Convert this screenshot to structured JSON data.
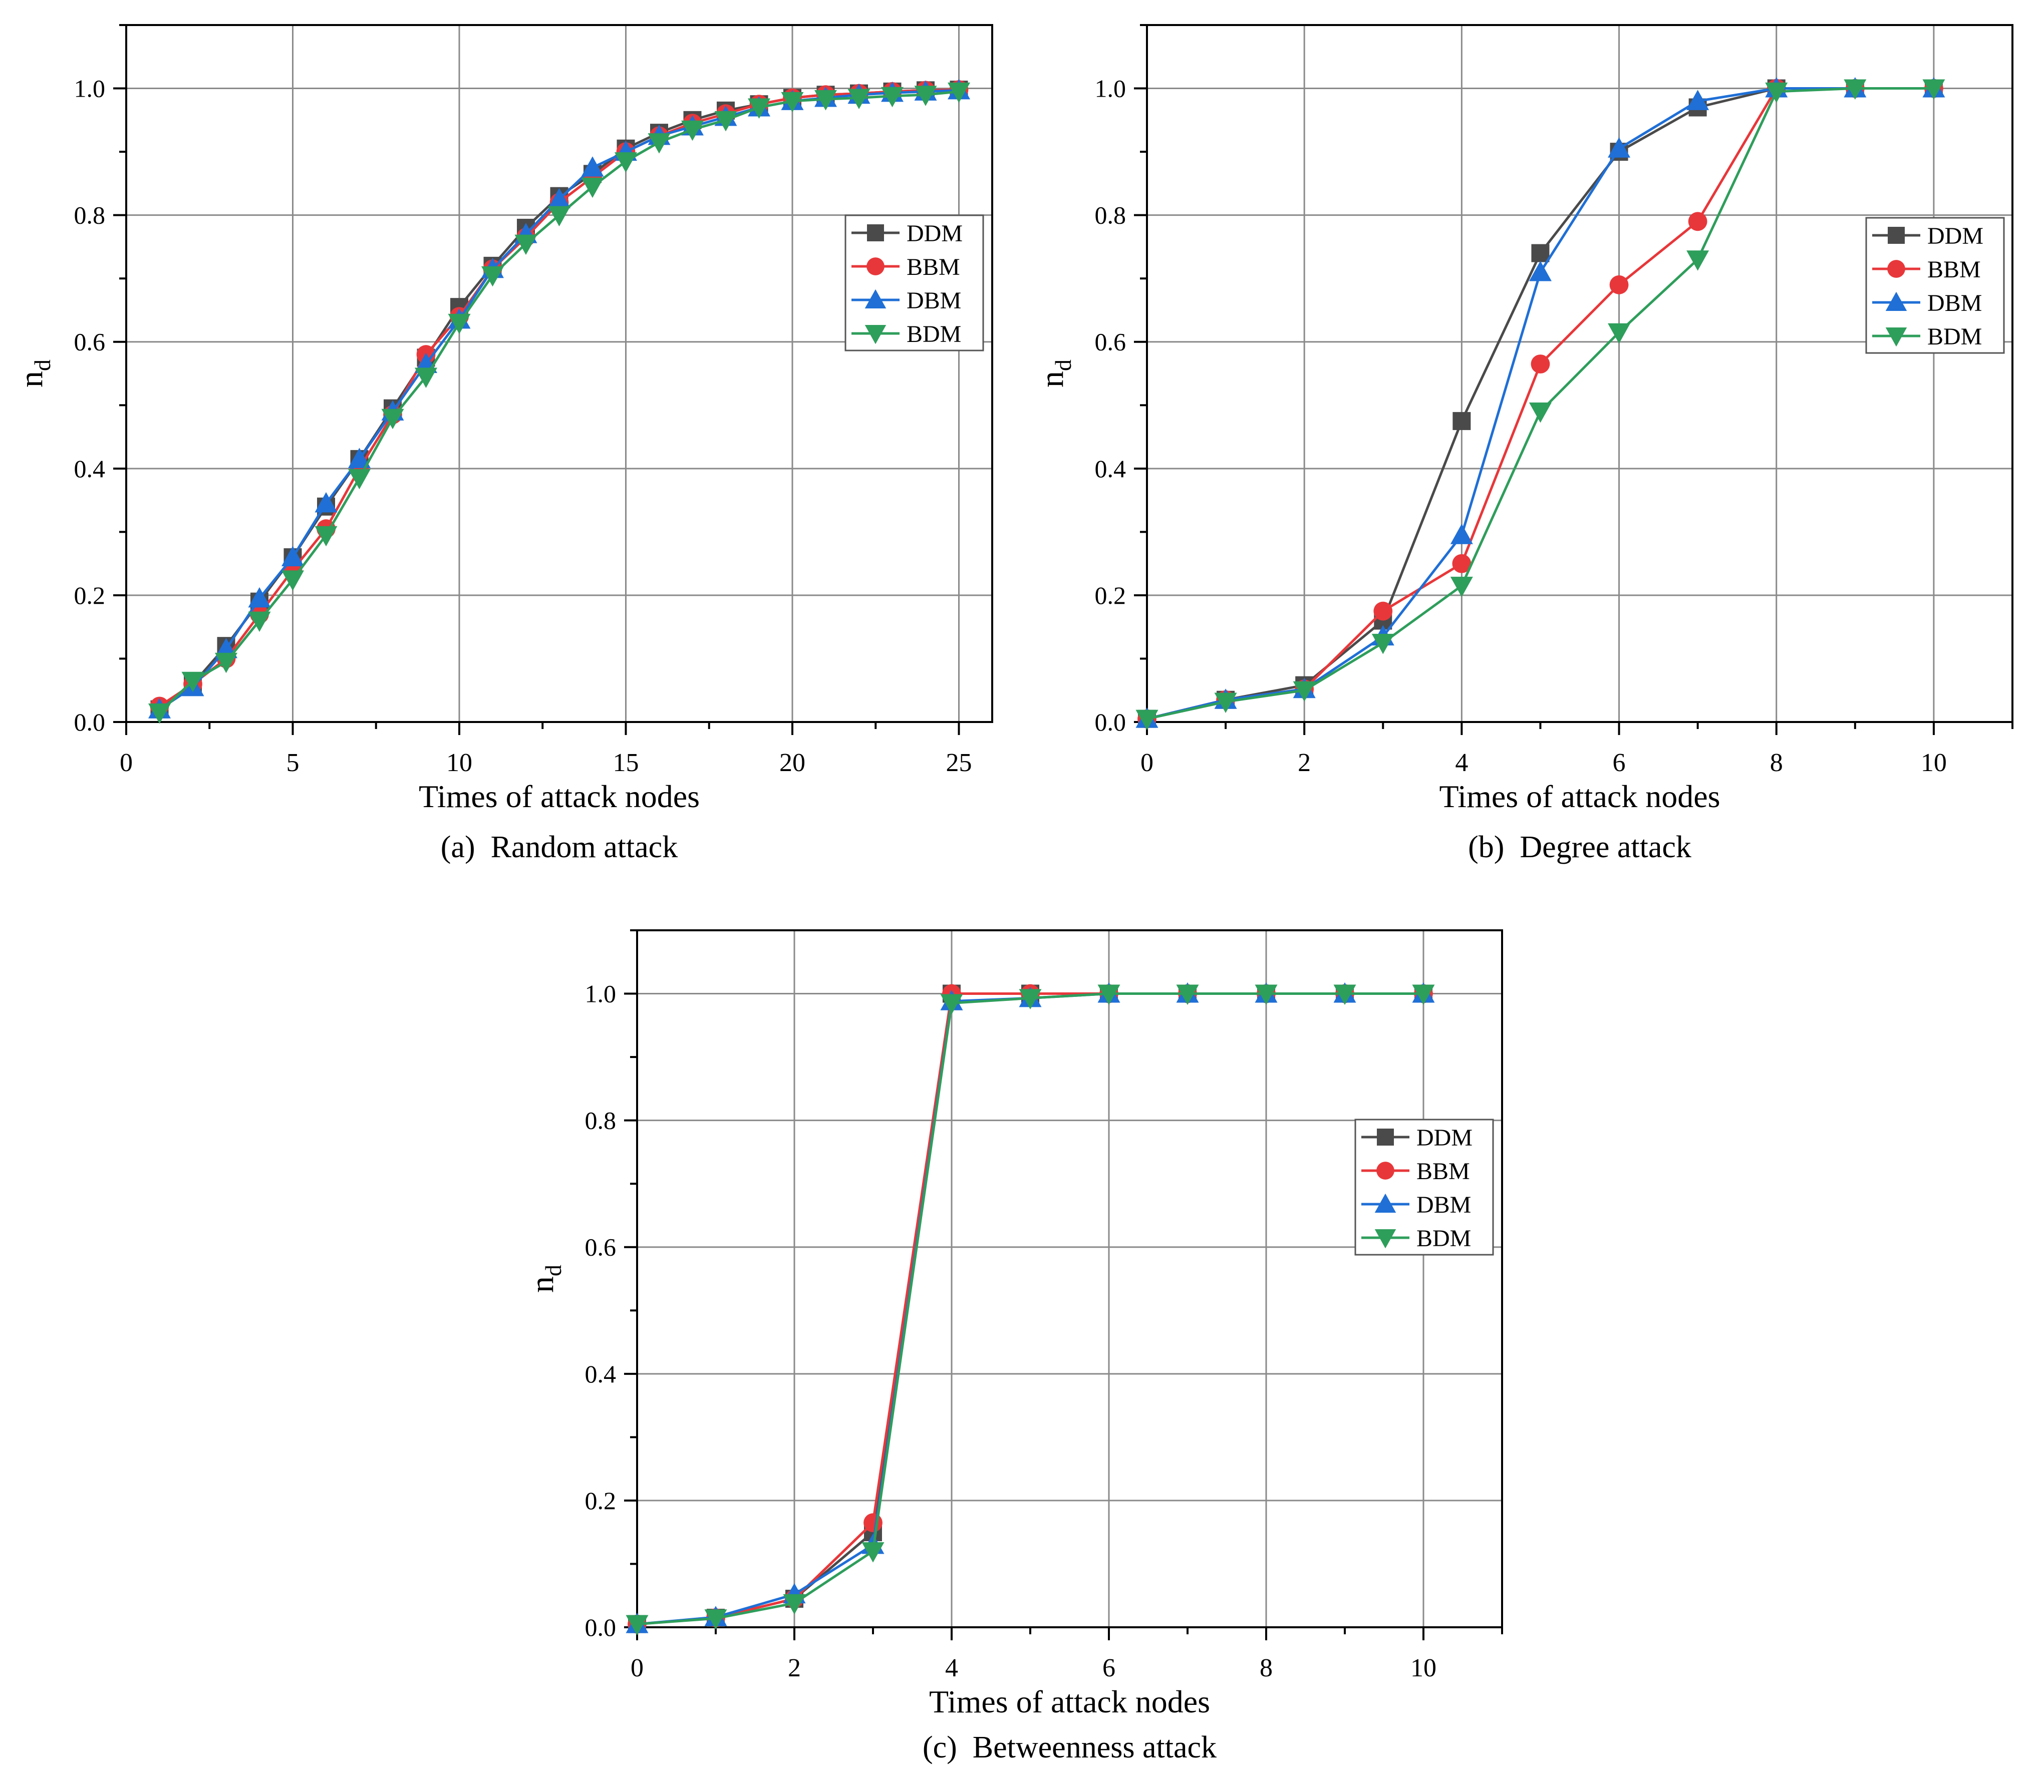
{
  "series_colors": {
    "DDM": "#4a4a4a",
    "BBM": "#e8373a",
    "DBM": "#1f6fd6",
    "BDM": "#2e9e5b"
  },
  "series_markers": {
    "DDM": "square",
    "BBM": "circle",
    "DBM": "triangle-up",
    "BDM": "triangle-down"
  },
  "chart_data": [
    {
      "type": "line",
      "caption": "(a)  Random attack",
      "xlabel": "Times of attack nodes",
      "ylabel": "n",
      "ylabel_sub": "d",
      "xlim": [
        0,
        26
      ],
      "ylim": [
        0,
        1.1
      ],
      "xticks": [
        0,
        5,
        10,
        15,
        20,
        25
      ],
      "xtick_labels": [
        "0",
        "5",
        "10",
        "15",
        "20",
        "25"
      ],
      "yticks": [
        0,
        0.2,
        0.4,
        0.6,
        0.8,
        1.0
      ],
      "ytick_labels": [
        "0.0",
        "0.2",
        "0.4",
        "0.6",
        "0.8",
        "1.0"
      ],
      "grid": true,
      "legend_position": "right",
      "x": [
        1,
        2,
        3,
        4,
        5,
        6,
        7,
        8,
        9,
        10,
        11,
        12,
        13,
        14,
        15,
        16,
        17,
        18,
        19,
        20,
        21,
        22,
        23,
        24,
        25
      ],
      "series": [
        {
          "name": "DDM",
          "values": [
            0.02,
            0.06,
            0.12,
            0.19,
            0.26,
            0.34,
            0.415,
            0.495,
            0.575,
            0.655,
            0.72,
            0.78,
            0.83,
            0.865,
            0.905,
            0.93,
            0.95,
            0.965,
            0.975,
            0.985,
            0.99,
            0.992,
            0.995,
            0.997,
            0.998
          ]
        },
        {
          "name": "BBM",
          "values": [
            0.025,
            0.06,
            0.1,
            0.17,
            0.24,
            0.305,
            0.4,
            0.485,
            0.58,
            0.64,
            0.715,
            0.765,
            0.82,
            0.86,
            0.9,
            0.925,
            0.945,
            0.96,
            0.975,
            0.985,
            0.99,
            0.992,
            0.995,
            0.997,
            0.998
          ]
        },
        {
          "name": "DBM",
          "values": [
            0.02,
            0.055,
            0.115,
            0.195,
            0.26,
            0.345,
            0.415,
            0.49,
            0.565,
            0.635,
            0.715,
            0.77,
            0.825,
            0.875,
            0.9,
            0.925,
            0.94,
            0.955,
            0.97,
            0.98,
            0.985,
            0.99,
            0.993,
            0.995,
            0.997
          ]
        },
        {
          "name": "BDM",
          "values": [
            0.015,
            0.065,
            0.095,
            0.16,
            0.225,
            0.295,
            0.385,
            0.48,
            0.545,
            0.63,
            0.705,
            0.755,
            0.8,
            0.845,
            0.885,
            0.915,
            0.935,
            0.95,
            0.97,
            0.98,
            0.983,
            0.985,
            0.988,
            0.99,
            0.995
          ]
        }
      ]
    },
    {
      "type": "line",
      "caption": "(b)  Degree attack",
      "xlabel": "Times of attack nodes",
      "ylabel": "n",
      "ylabel_sub": "d",
      "xlim": [
        0,
        11
      ],
      "ylim": [
        0,
        1.1
      ],
      "xticks": [
        0,
        2,
        4,
        6,
        8,
        10
      ],
      "xtick_labels": [
        "0",
        "2",
        "4",
        "6",
        "8",
        "10"
      ],
      "yticks": [
        0,
        0.2,
        0.4,
        0.6,
        0.8,
        1.0
      ],
      "ytick_labels": [
        "0.0",
        "0.2",
        "0.4",
        "0.6",
        "0.8",
        "1.0"
      ],
      "grid": true,
      "legend_position": "right",
      "x": [
        0,
        1,
        2,
        3,
        4,
        5,
        6,
        7,
        8,
        9,
        10
      ],
      "series": [
        {
          "name": "DDM",
          "values": [
            0.005,
            0.035,
            0.058,
            0.16,
            0.475,
            0.74,
            0.9,
            0.97,
            1.0,
            1.0,
            1.0
          ]
        },
        {
          "name": "BBM",
          "values": [
            0.005,
            0.035,
            0.052,
            0.175,
            0.25,
            0.565,
            0.69,
            0.79,
            1.0,
            1.0,
            1.0
          ]
        },
        {
          "name": "DBM",
          "values": [
            0.005,
            0.035,
            0.052,
            0.135,
            0.295,
            0.71,
            0.905,
            0.98,
            1.0,
            1.0,
            1.0
          ]
        },
        {
          "name": "BDM",
          "values": [
            0.005,
            0.032,
            0.05,
            0.125,
            0.215,
            0.49,
            0.615,
            0.73,
            0.995,
            1.0,
            1.0
          ]
        }
      ]
    },
    {
      "type": "line",
      "caption": "(c)  Betweenness attack",
      "xlabel": "Times of attack nodes",
      "ylabel": "n",
      "ylabel_sub": "d",
      "xlim": [
        0,
        11
      ],
      "ylim": [
        0,
        1.1
      ],
      "xticks": [
        0,
        2,
        4,
        6,
        8,
        10
      ],
      "xtick_labels": [
        "0",
        "2",
        "4",
        "6",
        "8",
        "10"
      ],
      "yticks": [
        0,
        0.2,
        0.4,
        0.6,
        0.8,
        1.0
      ],
      "ytick_labels": [
        "0.0",
        "0.2",
        "0.4",
        "0.6",
        "0.8",
        "1.0"
      ],
      "grid": true,
      "legend_position": "right",
      "x": [
        0,
        1,
        2,
        3,
        4,
        5,
        6,
        7,
        8,
        9,
        10
      ],
      "series": [
        {
          "name": "DDM",
          "values": [
            0.005,
            0.015,
            0.045,
            0.15,
            1.0,
            1.0,
            1.0,
            1.0,
            1.0,
            1.0,
            1.0
          ]
        },
        {
          "name": "BBM",
          "values": [
            0.005,
            0.015,
            0.045,
            0.165,
            1.0,
            1.0,
            1.0,
            1.0,
            1.0,
            1.0,
            1.0
          ]
        },
        {
          "name": "DBM",
          "values": [
            0.005,
            0.016,
            0.052,
            0.13,
            0.988,
            0.993,
            1.0,
            1.0,
            1.0,
            1.0,
            1.0
          ]
        },
        {
          "name": "BDM",
          "values": [
            0.005,
            0.014,
            0.038,
            0.12,
            0.985,
            0.993,
            1.0,
            1.0,
            1.0,
            1.0,
            1.0
          ]
        }
      ]
    }
  ]
}
